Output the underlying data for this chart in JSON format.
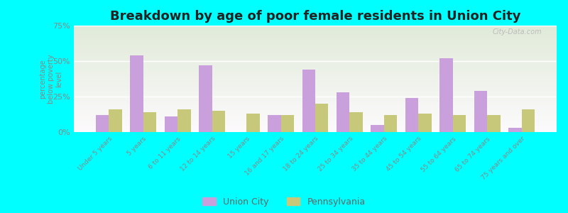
{
  "title": "Breakdown by age of poor female residents in Union City",
  "ylabel": "percentage\nbelow poverty\nlevel",
  "categories": [
    "Under 5 years",
    "5 years",
    "6 to 11 years",
    "12 to 14 years",
    "15 years",
    "16 and 17 years",
    "18 to 24 years",
    "25 to 34 years",
    "35 to 44 years",
    "45 to 54 years",
    "55 to 64 years",
    "65 to 74 years",
    "75 years and over"
  ],
  "union_city": [
    12,
    54,
    11,
    47,
    0,
    12,
    44,
    28,
    5,
    24,
    52,
    29,
    3
  ],
  "pennsylvania": [
    16,
    14,
    16,
    15,
    13,
    12,
    20,
    14,
    12,
    13,
    12,
    12,
    16
  ],
  "union_city_color": "#c9a0dc",
  "pennsylvania_color": "#c8c87a",
  "background_color": "#00ffff",
  "ylim": [
    0,
    75
  ],
  "yticks": [
    0,
    25,
    50,
    75
  ],
  "ytick_labels": [
    "0%",
    "25%",
    "50%",
    "75%"
  ],
  "title_fontsize": 13,
  "bar_width": 0.38,
  "legend_labels": [
    "Union City",
    "Pennsylvania"
  ]
}
